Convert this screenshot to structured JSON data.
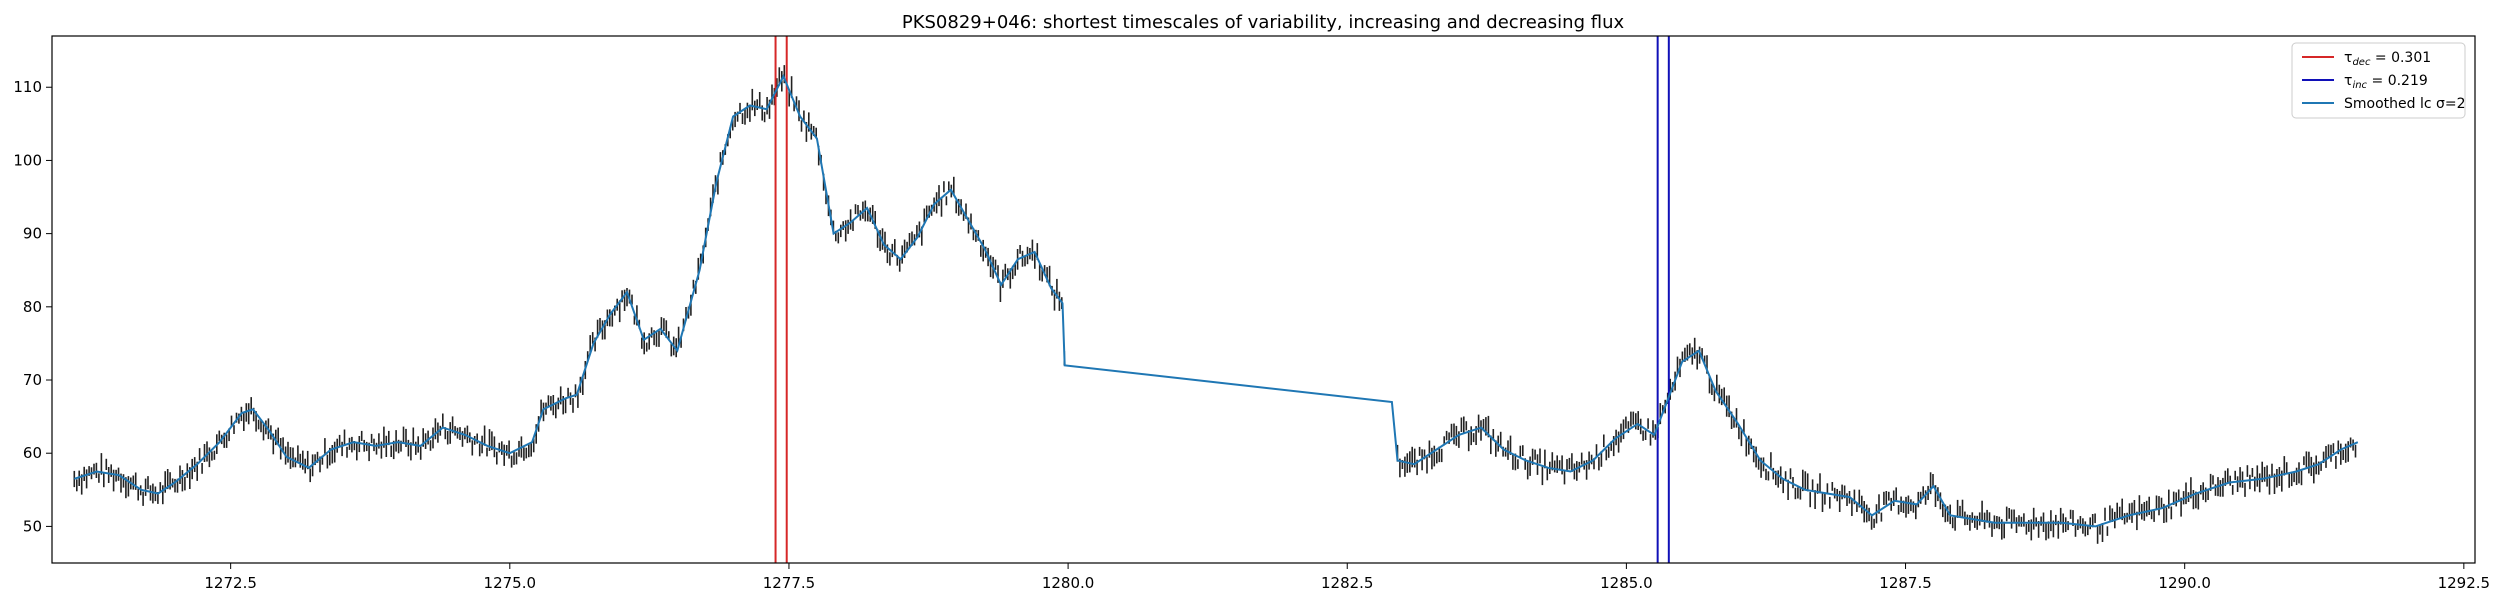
{
  "chart_data": {
    "type": "line",
    "title": "PKS0829+046: shortest timescales of variability, increasing and decreasing flux",
    "xlabel": "",
    "ylabel": "",
    "xlim": [
      1270.9,
      1292.6
    ],
    "ylim": [
      45,
      117
    ],
    "xticks": [
      1272.5,
      1275.0,
      1277.5,
      1280.0,
      1282.5,
      1285.0,
      1287.5,
      1290.0,
      1292.5
    ],
    "xtick_labels": [
      "1272.5",
      "1275.0",
      "1277.5",
      "1280.0",
      "1282.5",
      "1285.0",
      "1287.5",
      "1290.0",
      "1292.5"
    ],
    "yticks": [
      50,
      60,
      70,
      80,
      90,
      100,
      110
    ],
    "ytick_labels": [
      "50",
      "60",
      "70",
      "80",
      "90",
      "100",
      "110"
    ],
    "grid": false,
    "legend_position": "top-right",
    "series": [
      {
        "name": "Smoothed lc σ=2",
        "kind": "line",
        "color": "#1f77b4",
        "x": [
          1271.1,
          1271.3,
          1271.5,
          1271.7,
          1271.85,
          1272.0,
          1272.2,
          1272.4,
          1272.6,
          1272.7,
          1272.85,
          1273.0,
          1273.2,
          1273.4,
          1273.6,
          1273.8,
          1274.0,
          1274.2,
          1274.4,
          1274.6,
          1274.8,
          1275.0,
          1275.2,
          1275.3,
          1275.5,
          1275.6,
          1275.75,
          1275.9,
          1276.05,
          1276.2,
          1276.35,
          1276.5,
          1276.7,
          1276.85,
          1277.0,
          1277.15,
          1277.3,
          1277.45,
          1277.6,
          1277.75,
          1277.9,
          1278.05,
          1278.2,
          1278.35,
          1278.5,
          1278.65,
          1278.8,
          1278.95,
          1279.1,
          1279.25,
          1279.4,
          1279.55,
          1279.7,
          1279.85,
          1279.95,
          1279.97,
          1282.9,
          1282.95,
          1283.1,
          1283.3,
          1283.5,
          1283.7,
          1283.9,
          1284.1,
          1284.3,
          1284.5,
          1284.7,
          1284.9,
          1285.1,
          1285.25,
          1285.35,
          1285.5,
          1285.65,
          1285.8,
          1286.0,
          1286.2,
          1286.4,
          1286.6,
          1286.8,
          1287.0,
          1287.2,
          1287.4,
          1287.6,
          1287.75,
          1287.9,
          1288.1,
          1288.3,
          1288.6,
          1288.9,
          1289.2,
          1289.5,
          1289.8,
          1290.1,
          1290.4,
          1290.7,
          1291.0,
          1291.2,
          1291.4,
          1291.55
        ],
        "y": [
          56.5,
          57.5,
          57.0,
          55.0,
          54.5,
          56.0,
          58.5,
          61.5,
          65.5,
          66.0,
          63.0,
          59.5,
          58.0,
          60.5,
          61.5,
          61.0,
          61.5,
          61.0,
          63.5,
          62.5,
          61.0,
          60.0,
          61.5,
          66.0,
          67.5,
          68.0,
          75.0,
          79.0,
          82.0,
          75.5,
          77.0,
          74.0,
          85.0,
          97.0,
          106.0,
          107.5,
          107.0,
          111.5,
          106.0,
          103.0,
          90.0,
          91.5,
          93.5,
          88.5,
          86.5,
          89.5,
          94.0,
          96.0,
          92.0,
          88.0,
          83.0,
          86.5,
          87.5,
          82.5,
          80.5,
          72.0,
          67.0,
          59.0,
          58.5,
          60.5,
          62.5,
          63.5,
          60.5,
          59.0,
          58.0,
          57.5,
          59.0,
          62.0,
          64.0,
          62.5,
          66.5,
          72.5,
          74.0,
          68.5,
          64.0,
          59.0,
          56.5,
          55.0,
          54.5,
          54.0,
          51.5,
          53.5,
          53.0,
          55.5,
          51.5,
          51.0,
          50.5,
          50.5,
          50.5,
          50.0,
          51.5,
          52.5,
          54.5,
          56.0,
          56.5,
          57.5,
          58.5,
          60.5,
          61.5
        ]
      },
      {
        "name": "τ_dec = 0.301",
        "kind": "vlines",
        "color": "#d62728",
        "x": [
          1277.38,
          1277.48
        ]
      },
      {
        "name": "τ_inc = 0.219",
        "kind": "vlines",
        "color": "#1010b8",
        "x": [
          1285.28,
          1285.38
        ]
      }
    ],
    "observations": {
      "description": "observed light curve points with error bars, drawn around the smoothed curve",
      "color": "#222222"
    },
    "legend": [
      {
        "label_main": "τ",
        "label_sub": "dec",
        "label_rest": " = 0.301",
        "color": "#d62728"
      },
      {
        "label_main": "τ",
        "label_sub": "inc",
        "label_rest": " = 0.219",
        "color": "#1010b8"
      },
      {
        "label_main": "Smoothed lc σ=2",
        "label_sub": "",
        "label_rest": "",
        "color": "#1f77b4"
      }
    ]
  }
}
